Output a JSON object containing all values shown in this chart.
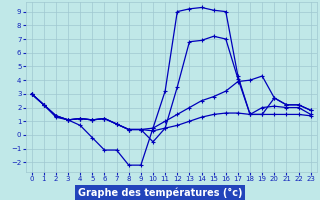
{
  "xlabel": "Graphe des températures (°c)",
  "background_color": "#c0e8e8",
  "grid_color": "#a0c8d0",
  "line_color": "#0000bb",
  "xlim_min": -0.5,
  "xlim_max": 23.5,
  "ylim_min": -2.7,
  "ylim_max": 9.7,
  "yticks": [
    -2,
    -1,
    0,
    1,
    2,
    3,
    4,
    5,
    6,
    7,
    8,
    9
  ],
  "xticks": [
    0,
    1,
    2,
    3,
    4,
    5,
    6,
    7,
    8,
    9,
    10,
    11,
    12,
    13,
    14,
    15,
    16,
    17,
    18,
    19,
    20,
    21,
    22,
    23
  ],
  "curve1": [
    3.0,
    2.2,
    1.3,
    1.1,
    0.7,
    -0.2,
    -1.1,
    -1.1,
    -2.2,
    -2.2,
    0.5,
    3.2,
    9.0,
    9.2,
    9.3,
    9.1,
    9.0,
    4.3,
    1.5,
    2.0,
    2.1,
    2.0,
    2.0,
    1.5
  ],
  "curve2": [
    3.0,
    2.2,
    1.4,
    1.1,
    1.2,
    1.1,
    1.2,
    0.8,
    0.4,
    0.4,
    0.5,
    1.0,
    1.5,
    2.0,
    2.5,
    2.8,
    3.2,
    3.9,
    4.0,
    4.3,
    2.7,
    2.2,
    2.2,
    1.8
  ],
  "curve3": [
    3.0,
    2.2,
    1.4,
    1.1,
    1.2,
    1.1,
    1.2,
    0.8,
    0.4,
    0.4,
    0.3,
    0.5,
    0.7,
    1.0,
    1.3,
    1.5,
    1.6,
    1.6,
    1.5,
    1.5,
    1.5,
    1.5,
    1.5,
    1.4
  ],
  "curve4": [
    3.0,
    2.2,
    1.4,
    1.1,
    1.2,
    1.1,
    1.2,
    0.8,
    0.4,
    0.4,
    -0.5,
    0.5,
    3.5,
    6.8,
    6.9,
    7.2,
    7.0,
    4.1,
    1.5,
    1.5,
    2.7,
    2.2,
    2.2,
    1.8
  ],
  "xlabel_bg": "#2244bb",
  "xlabel_color": "white",
  "xlabel_fontsize": 7,
  "tick_fontsize": 5,
  "tick_color": "#1122bb",
  "marker": "+",
  "markersize": 3,
  "linewidth": 0.9
}
